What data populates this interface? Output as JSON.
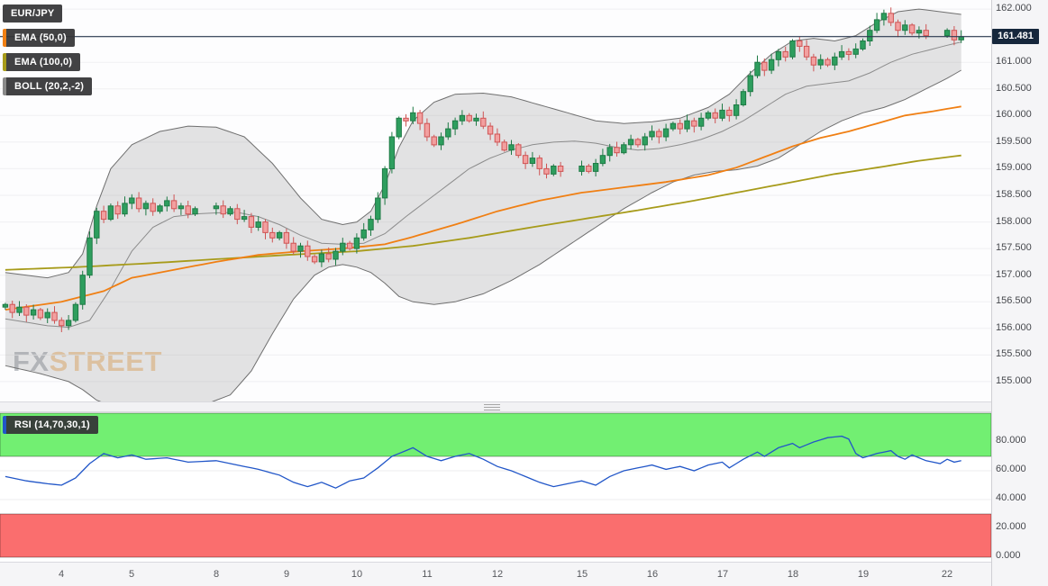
{
  "header": {
    "symbol_label": "EUR/JPY",
    "ema50_label": "EMA (50,0)",
    "ema100_label": "EMA (100,0)",
    "boll_label": "BOLL (20,2,-2)",
    "rsi_label": "RSI (14,70,30,1)"
  },
  "watermark": {
    "fx": "FX",
    "street": "STREET"
  },
  "price_axis": {
    "last_price_label": "161.481",
    "tick_values": [
      162.0,
      161.5,
      161.0,
      160.5,
      160.0,
      159.5,
      159.0,
      158.5,
      158.0,
      157.5,
      157.0,
      156.5,
      156.0,
      155.5,
      155.0
    ]
  },
  "rsi_axis": {
    "tick_values": [
      80,
      60,
      40,
      20,
      0
    ]
  },
  "colors": {
    "up_candle": "#2e9e5e",
    "up_border": "#1e7a45",
    "down_candle": "#f2a0a0",
    "down_border": "#cf5454",
    "ema50": "#f07f13",
    "ema100": "#a79b1a",
    "band_fill": "rgba(130,130,130,0.22)",
    "band_edge": "#6f6f6f",
    "band_mid": "#8c8c8c",
    "price_line": "#2b3a50",
    "price_badge_bg": "#16273c",
    "rsi_line": "#2156c8",
    "overbought_zone": "#72ef72",
    "oversold_zone": "#fa6e6e",
    "grid": "#f0f0f2"
  },
  "chart_data": [
    {
      "type": "candlestick",
      "title": "EUR/JPY with EMA(50), EMA(100) and Bollinger Bands (20,2,-2)",
      "ylim": [
        154.61,
        162.17
      ],
      "last_price": 161.481,
      "timeframe_labels": [
        "4",
        "5",
        "8",
        "9",
        "10",
        "11",
        "12",
        "15",
        "16",
        "17",
        "18",
        "19",
        "22"
      ],
      "label_indices": [
        8,
        18,
        30,
        40,
        50,
        60,
        70,
        82,
        92,
        102,
        112,
        122,
        134
      ],
      "closes": [
        156.45,
        156.3,
        156.4,
        156.25,
        156.35,
        156.2,
        156.3,
        156.15,
        156.05,
        156.15,
        156.45,
        157.0,
        157.7,
        158.2,
        158.05,
        158.3,
        158.15,
        158.35,
        158.45,
        158.25,
        158.35,
        158.2,
        158.3,
        158.4,
        158.25,
        158.3,
        158.15,
        158.25,
        null,
        null,
        158.3,
        158.15,
        158.25,
        158.05,
        158.1,
        157.9,
        158.0,
        157.8,
        157.7,
        157.8,
        157.6,
        157.45,
        157.55,
        157.35,
        157.25,
        157.4,
        157.3,
        157.45,
        157.6,
        157.5,
        157.7,
        157.85,
        158.05,
        158.45,
        159.0,
        159.6,
        159.95,
        159.9,
        160.05,
        159.85,
        159.6,
        159.45,
        159.6,
        159.75,
        159.9,
        160.0,
        159.9,
        159.95,
        159.8,
        159.65,
        159.5,
        159.35,
        159.45,
        159.25,
        159.1,
        159.2,
        159.0,
        158.9,
        159.05,
        158.95,
        null,
        null,
        159.05,
        158.95,
        159.1,
        159.25,
        159.4,
        159.3,
        159.45,
        159.55,
        159.45,
        159.6,
        159.7,
        159.6,
        159.75,
        159.85,
        159.75,
        159.9,
        159.8,
        159.95,
        160.05,
        159.95,
        160.1,
        160.0,
        160.2,
        160.45,
        160.75,
        161.0,
        160.85,
        161.05,
        161.2,
        161.1,
        161.4,
        161.3,
        161.1,
        160.95,
        161.05,
        160.95,
        161.1,
        161.2,
        161.15,
        161.25,
        161.4,
        161.6,
        161.8,
        161.92,
        161.75,
        161.6,
        161.7,
        161.55,
        161.6,
        161.5,
        null,
        null,
        161.6,
        161.42,
        161.48
      ],
      "overlays": {
        "ema50": [
          [
            0,
            156.35
          ],
          [
            8,
            156.5
          ],
          [
            14,
            156.7
          ],
          [
            18,
            156.95
          ],
          [
            24,
            157.1
          ],
          [
            30,
            157.25
          ],
          [
            36,
            157.38
          ],
          [
            42,
            157.45
          ],
          [
            48,
            157.5
          ],
          [
            54,
            157.58
          ],
          [
            58,
            157.72
          ],
          [
            64,
            157.95
          ],
          [
            70,
            158.2
          ],
          [
            76,
            158.4
          ],
          [
            82,
            158.55
          ],
          [
            88,
            158.65
          ],
          [
            94,
            158.75
          ],
          [
            100,
            158.88
          ],
          [
            104,
            159.02
          ],
          [
            108,
            159.22
          ],
          [
            112,
            159.42
          ],
          [
            116,
            159.58
          ],
          [
            120,
            159.7
          ],
          [
            124,
            159.85
          ],
          [
            128,
            160.0
          ],
          [
            132,
            160.08
          ],
          [
            136,
            160.17
          ]
        ],
        "ema100": [
          [
            0,
            157.1
          ],
          [
            10,
            157.15
          ],
          [
            20,
            157.22
          ],
          [
            30,
            157.3
          ],
          [
            40,
            157.38
          ],
          [
            50,
            157.45
          ],
          [
            58,
            157.55
          ],
          [
            66,
            157.7
          ],
          [
            74,
            157.88
          ],
          [
            82,
            158.05
          ],
          [
            90,
            158.22
          ],
          [
            98,
            158.4
          ],
          [
            106,
            158.6
          ],
          [
            112,
            158.75
          ],
          [
            118,
            158.9
          ],
          [
            124,
            159.02
          ],
          [
            130,
            159.15
          ],
          [
            136,
            159.25
          ]
        ],
        "boll_upper": [
          [
            0,
            157.05
          ],
          [
            6,
            156.95
          ],
          [
            9,
            157.05
          ],
          [
            11,
            157.4
          ],
          [
            13,
            158.3
          ],
          [
            15,
            159.0
          ],
          [
            18,
            159.45
          ],
          [
            22,
            159.7
          ],
          [
            26,
            159.8
          ],
          [
            30,
            159.78
          ],
          [
            34,
            159.6
          ],
          [
            38,
            159.1
          ],
          [
            42,
            158.45
          ],
          [
            45,
            158.05
          ],
          [
            48,
            157.95
          ],
          [
            50,
            158.0
          ],
          [
            52,
            158.2
          ],
          [
            54,
            158.7
          ],
          [
            56,
            159.4
          ],
          [
            58,
            159.9
          ],
          [
            61,
            160.25
          ],
          [
            64,
            160.4
          ],
          [
            68,
            160.42
          ],
          [
            72,
            160.35
          ],
          [
            76,
            160.2
          ],
          [
            80,
            160.05
          ],
          [
            84,
            159.9
          ],
          [
            88,
            159.85
          ],
          [
            92,
            159.88
          ],
          [
            96,
            159.95
          ],
          [
            100,
            160.15
          ],
          [
            103,
            160.4
          ],
          [
            106,
            160.8
          ],
          [
            109,
            161.15
          ],
          [
            112,
            161.4
          ],
          [
            115,
            161.45
          ],
          [
            118,
            161.4
          ],
          [
            121,
            161.5
          ],
          [
            124,
            161.75
          ],
          [
            127,
            161.95
          ],
          [
            130,
            162.0
          ],
          [
            133,
            161.95
          ],
          [
            136,
            161.9
          ]
        ],
        "boll_mid": [
          [
            0,
            156.18
          ],
          [
            6,
            156.05
          ],
          [
            9,
            156.02
          ],
          [
            12,
            156.15
          ],
          [
            15,
            156.75
          ],
          [
            18,
            157.45
          ],
          [
            21,
            157.9
          ],
          [
            24,
            158.1
          ],
          [
            27,
            158.15
          ],
          [
            30,
            158.17
          ],
          [
            33,
            158.18
          ],
          [
            36,
            158.1
          ],
          [
            39,
            157.95
          ],
          [
            42,
            157.75
          ],
          [
            45,
            157.6
          ],
          [
            48,
            157.58
          ],
          [
            51,
            157.6
          ],
          [
            54,
            157.78
          ],
          [
            57,
            158.1
          ],
          [
            60,
            158.4
          ],
          [
            63,
            158.7
          ],
          [
            66,
            159.0
          ],
          [
            69,
            159.2
          ],
          [
            72,
            159.35
          ],
          [
            75,
            159.45
          ],
          [
            78,
            159.5
          ],
          [
            81,
            159.52
          ],
          [
            84,
            159.48
          ],
          [
            87,
            159.4
          ],
          [
            90,
            159.35
          ],
          [
            93,
            159.38
          ],
          [
            96,
            159.45
          ],
          [
            99,
            159.55
          ],
          [
            102,
            159.7
          ],
          [
            105,
            159.9
          ],
          [
            108,
            160.15
          ],
          [
            111,
            160.4
          ],
          [
            114,
            160.55
          ],
          [
            117,
            160.6
          ],
          [
            120,
            160.65
          ],
          [
            123,
            160.8
          ],
          [
            126,
            161.0
          ],
          [
            129,
            161.15
          ],
          [
            132,
            161.25
          ],
          [
            134,
            161.32
          ],
          [
            136,
            161.38
          ]
        ],
        "boll_lower": [
          [
            0,
            155.3
          ],
          [
            5,
            155.15
          ],
          [
            9,
            155.0
          ],
          [
            11,
            154.85
          ],
          [
            13,
            154.65
          ],
          [
            16,
            154.5
          ],
          [
            20,
            154.45
          ],
          [
            24,
            154.48
          ],
          [
            28,
            154.55
          ],
          [
            32,
            154.75
          ],
          [
            35,
            155.2
          ],
          [
            38,
            155.9
          ],
          [
            41,
            156.55
          ],
          [
            44,
            157.0
          ],
          [
            46,
            157.15
          ],
          [
            48,
            157.2
          ],
          [
            50,
            157.15
          ],
          [
            52,
            157.05
          ],
          [
            54,
            156.85
          ],
          [
            56,
            156.6
          ],
          [
            58,
            156.5
          ],
          [
            61,
            156.45
          ],
          [
            64,
            156.5
          ],
          [
            68,
            156.65
          ],
          [
            72,
            156.9
          ],
          [
            76,
            157.2
          ],
          [
            80,
            157.55
          ],
          [
            84,
            157.9
          ],
          [
            88,
            158.25
          ],
          [
            92,
            158.55
          ],
          [
            95,
            158.75
          ],
          [
            98,
            158.88
          ],
          [
            101,
            158.95
          ],
          [
            104,
            158.98
          ],
          [
            107,
            159.05
          ],
          [
            110,
            159.2
          ],
          [
            113,
            159.45
          ],
          [
            116,
            159.7
          ],
          [
            119,
            159.9
          ],
          [
            122,
            160.05
          ],
          [
            125,
            160.15
          ],
          [
            128,
            160.3
          ],
          [
            131,
            160.5
          ],
          [
            134,
            160.7
          ],
          [
            136,
            160.85
          ]
        ]
      }
    },
    {
      "type": "line",
      "title": "RSI (14,70,30,1)",
      "ylim": [
        0,
        100
      ],
      "overbought": 70,
      "oversold": 30,
      "points": [
        [
          0,
          56
        ],
        [
          3,
          53
        ],
        [
          6,
          51
        ],
        [
          8,
          50
        ],
        [
          10,
          55
        ],
        [
          12,
          65
        ],
        [
          14,
          72
        ],
        [
          16,
          69
        ],
        [
          18,
          71
        ],
        [
          20,
          68
        ],
        [
          23,
          69
        ],
        [
          26,
          66
        ],
        [
          30,
          67
        ],
        [
          33,
          64
        ],
        [
          36,
          61
        ],
        [
          39,
          57
        ],
        [
          41,
          52
        ],
        [
          43,
          49
        ],
        [
          45,
          52
        ],
        [
          47,
          48
        ],
        [
          49,
          53
        ],
        [
          51,
          55
        ],
        [
          53,
          62
        ],
        [
          55,
          70
        ],
        [
          57,
          74
        ],
        [
          58,
          76
        ],
        [
          60,
          70
        ],
        [
          62,
          67
        ],
        [
          64,
          70
        ],
        [
          66,
          72
        ],
        [
          68,
          68
        ],
        [
          70,
          63
        ],
        [
          72,
          60
        ],
        [
          74,
          56
        ],
        [
          76,
          52
        ],
        [
          78,
          49
        ],
        [
          80,
          51
        ],
        [
          82,
          53
        ],
        [
          84,
          50
        ],
        [
          86,
          56
        ],
        [
          88,
          60
        ],
        [
          90,
          62
        ],
        [
          92,
          64
        ],
        [
          94,
          61
        ],
        [
          96,
          63
        ],
        [
          98,
          60
        ],
        [
          100,
          64
        ],
        [
          102,
          66
        ],
        [
          103,
          62
        ],
        [
          105,
          68
        ],
        [
          107,
          73
        ],
        [
          108,
          70
        ],
        [
          110,
          76
        ],
        [
          112,
          79
        ],
        [
          113,
          76
        ],
        [
          115,
          80
        ],
        [
          117,
          83
        ],
        [
          119,
          84
        ],
        [
          120,
          82
        ],
        [
          121,
          72
        ],
        [
          122,
          69
        ],
        [
          124,
          72
        ],
        [
          126,
          74
        ],
        [
          127,
          70
        ],
        [
          128,
          68
        ],
        [
          129,
          71
        ],
        [
          131,
          67
        ],
        [
          133,
          65
        ],
        [
          134,
          68
        ],
        [
          135,
          66
        ],
        [
          136,
          67
        ]
      ]
    }
  ]
}
